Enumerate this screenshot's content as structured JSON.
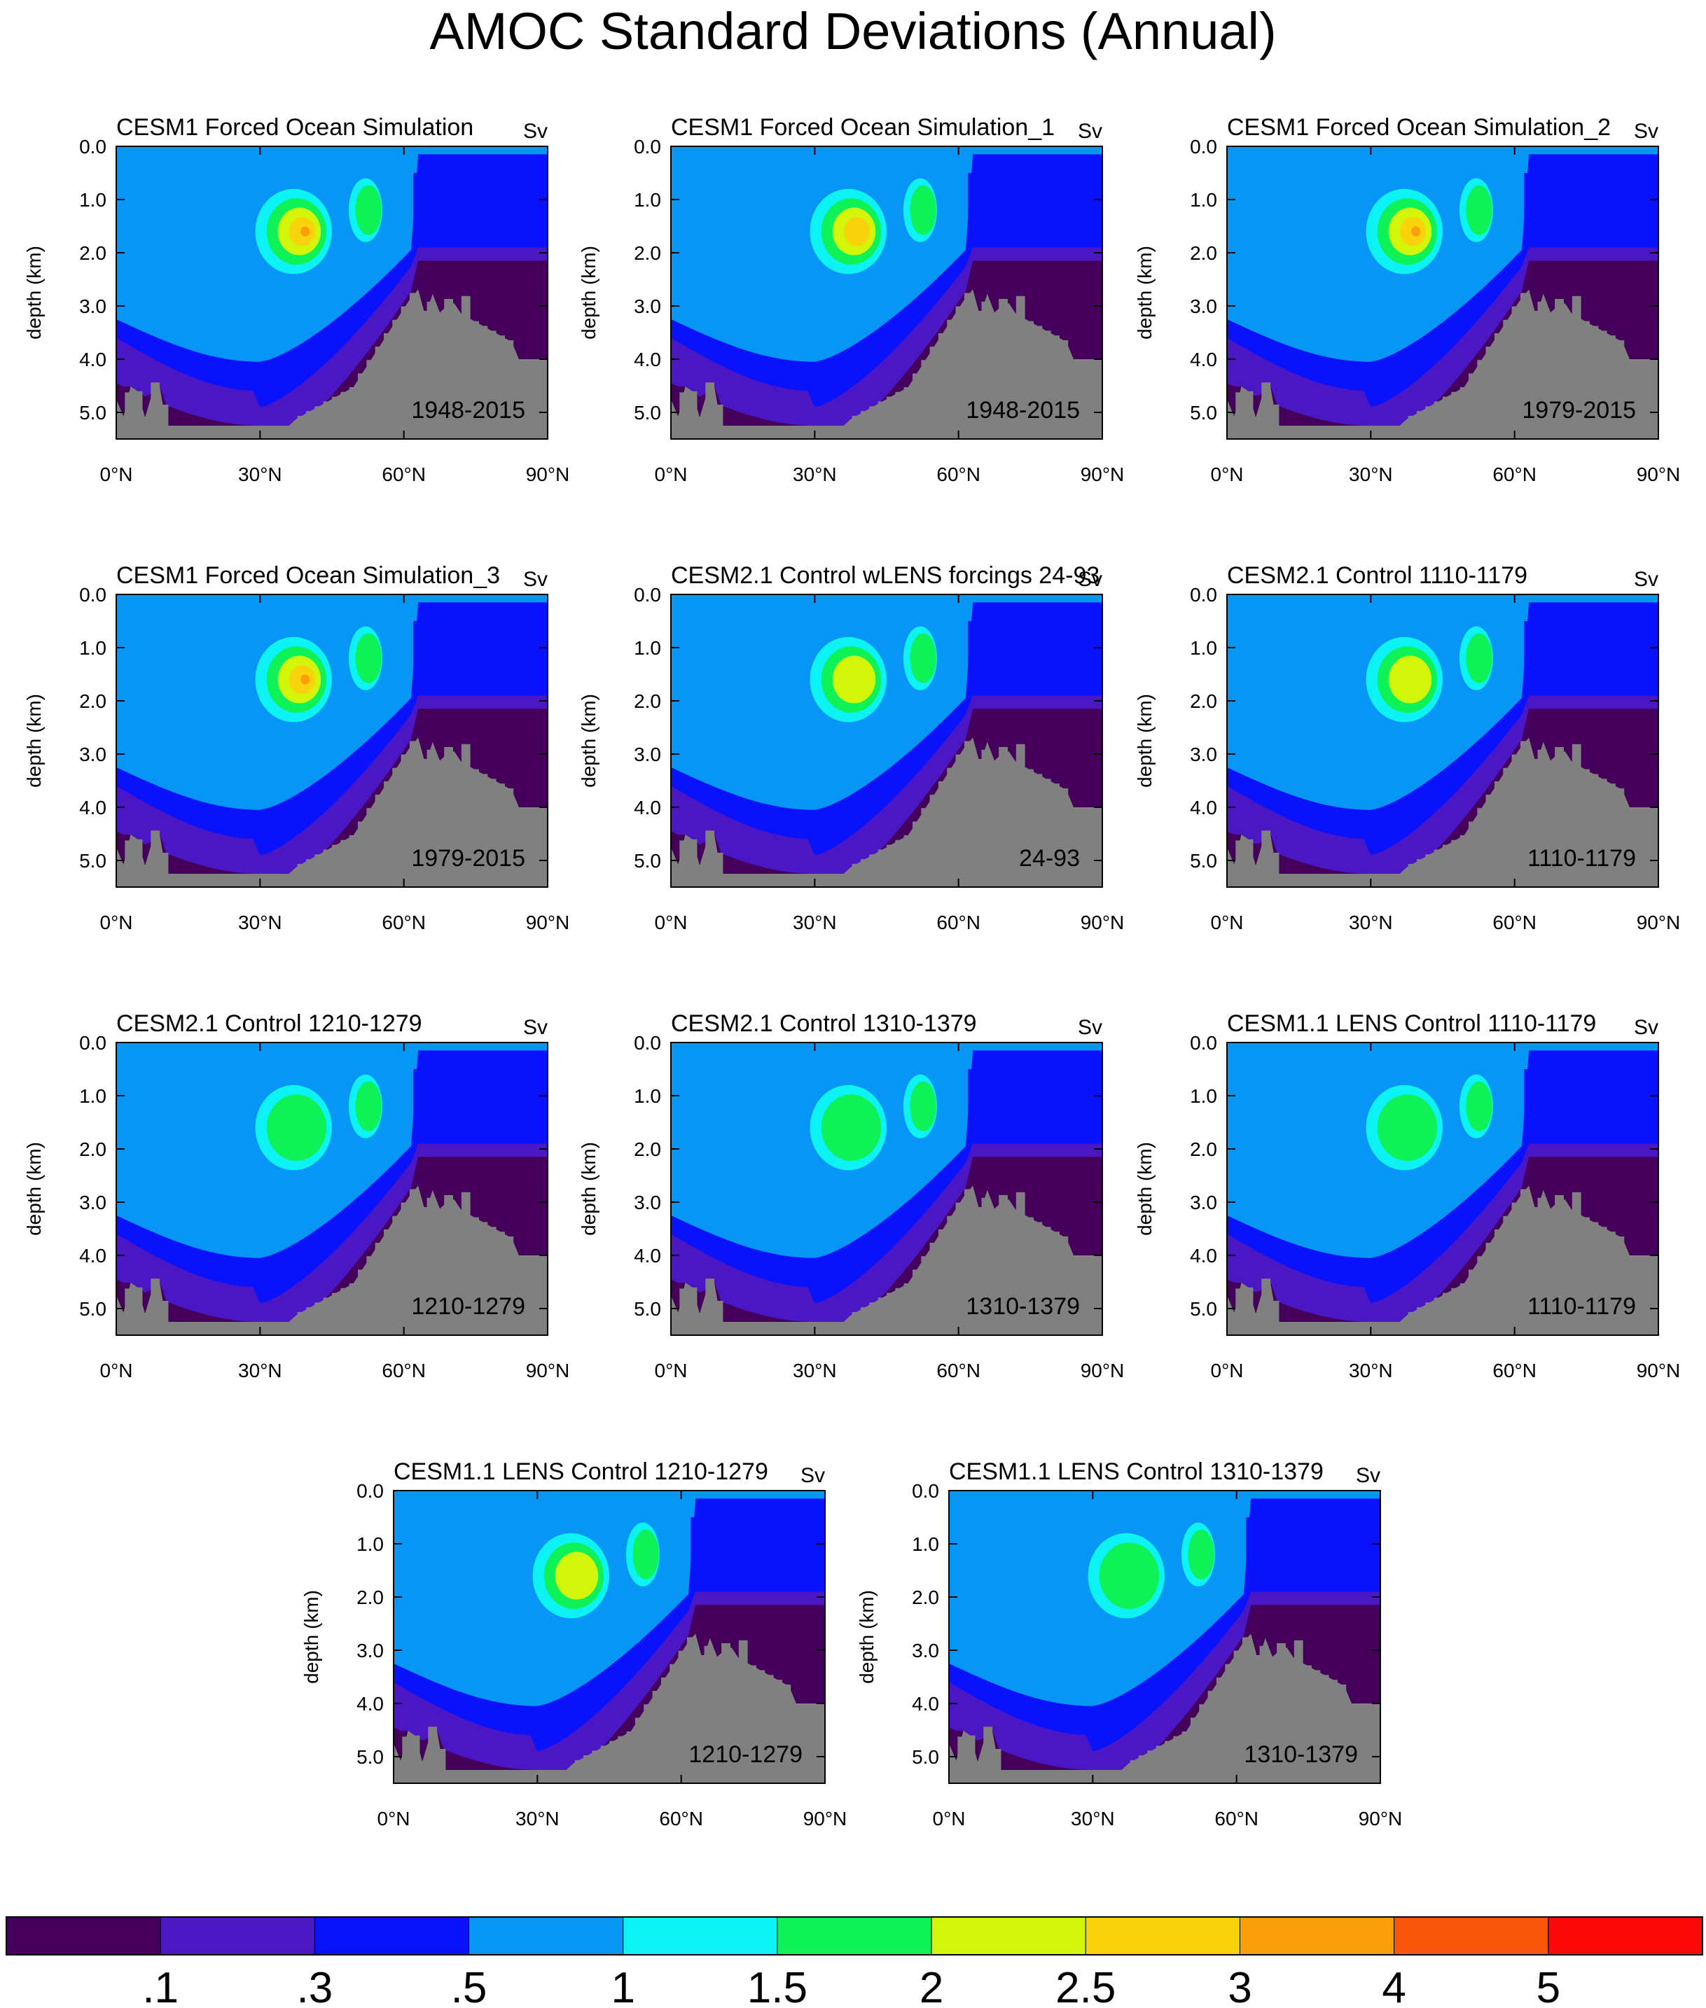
{
  "title": "AMOC Standard Deviations (Annual)",
  "chart_data": {
    "type": "heatmap",
    "description_units": "Sv",
    "x_ticks": [
      "0°N",
      "30°N",
      "60°N",
      "90°N"
    ],
    "y_ticks": [
      "0.0",
      "1.0",
      "2.0",
      "3.0",
      "4.0",
      "5.0"
    ],
    "ylabel": "depth (km)",
    "xlim": [
      0,
      90
    ],
    "ylim": [
      5.5,
      0
    ],
    "colorbar": {
      "labels": [
        ".1",
        ".3",
        ".5",
        "1",
        "1.5",
        "2",
        "2.5",
        "3",
        "4",
        "5"
      ],
      "colors": [
        "#44005a",
        "#4b17c4",
        "#0a12fb",
        "#0896f6",
        "#0df2f5",
        "#0ef257",
        "#d2f50a",
        "#f9d30b",
        "#fba00b",
        "#f9550b",
        "#fb0808"
      ]
    },
    "panels": [
      {
        "title": "CESM1 Forced Ocean Simulation",
        "unit": "Sv",
        "period": "1948-2015",
        "max_level": 8
      },
      {
        "title": "CESM1 Forced Ocean Simulation_1",
        "unit": "Sv",
        "period": "1948-2015",
        "max_level": 7
      },
      {
        "title": "CESM1 Forced Ocean Simulation_2",
        "unit": "Sv",
        "period": "1979-2015",
        "max_level": 8
      },
      {
        "title": "CESM1 Forced Ocean Simulation_3",
        "unit": "Sv",
        "period": "1979-2015",
        "max_level": 8
      },
      {
        "title": "CESM2.1 Control wLENS forcings 24-93",
        "unit": "Sv",
        "period": "24-93",
        "max_level": 6
      },
      {
        "title": "CESM2.1 Control 1110-1179",
        "unit": "Sv",
        "period": "1110-1179",
        "max_level": 6
      },
      {
        "title": "CESM2.1 Control 1210-1279",
        "unit": "Sv",
        "period": "1210-1279",
        "max_level": 5
      },
      {
        "title": "CESM2.1 Control 1310-1379",
        "unit": "Sv",
        "period": "1310-1379",
        "max_level": 5
      },
      {
        "title": "CESM1.1 LENS Control 1110-1179",
        "unit": "Sv",
        "period": "1110-1179",
        "max_level": 5
      },
      {
        "title": "CESM1.1 LENS Control 1210-1279",
        "unit": "Sv",
        "period": "1210-1279",
        "max_level": 6
      },
      {
        "title": "CESM1.1 LENS Control 1310-1379",
        "unit": "Sv",
        "period": "1310-1379",
        "max_level": 5
      }
    ]
  }
}
